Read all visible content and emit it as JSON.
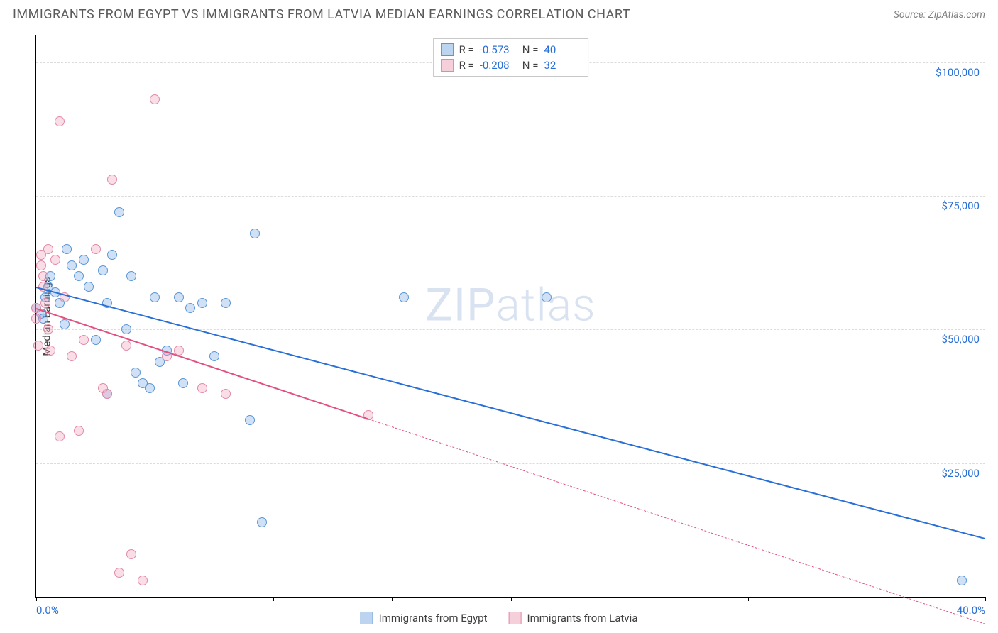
{
  "header": {
    "title": "IMMIGRANTS FROM EGYPT VS IMMIGRANTS FROM LATVIA MEDIAN EARNINGS CORRELATION CHART",
    "source": "Source: ZipAtlas.com"
  },
  "watermark": {
    "zip": "ZIP",
    "rest": "atlas"
  },
  "chart": {
    "type": "scatter",
    "ylabel": "Median Earnings",
    "background_color": "#ffffff",
    "grid_color": "#dcdcdc",
    "axis_color": "#000000",
    "tick_label_color": "#2a6fd6",
    "label_fontsize": 15,
    "title_fontsize": 18,
    "xlim": [
      0,
      40
    ],
    "ylim": [
      0,
      105000
    ],
    "xticks": [
      0,
      5,
      10,
      15,
      20,
      25,
      30,
      35,
      40
    ],
    "xtick_labels_shown": {
      "0": "0.0%",
      "40": "40.0%"
    },
    "yticks": [
      25000,
      50000,
      75000,
      100000
    ],
    "ytick_labels": [
      "$25,000",
      "$50,000",
      "$75,000",
      "$100,000"
    ],
    "marker_radius": 7,
    "marker_stroke_width": 1,
    "trend_line_width": 2,
    "series": [
      {
        "name": "Immigrants from Egypt",
        "fill_color": "rgba(120,170,230,0.35)",
        "stroke_color": "#5a96d6",
        "swatch_fill": "#bcd4ef",
        "swatch_stroke": "#5a96d6",
        "R": "-0.573",
        "N": "40",
        "trend": {
          "x1": 0,
          "y1": 58000,
          "x2": 40,
          "y2": 11000,
          "color": "#2a6fd6",
          "solid_until_x": 40
        },
        "points": [
          [
            0.0,
            54000
          ],
          [
            0.2,
            53000
          ],
          [
            0.3,
            52000
          ],
          [
            0.4,
            56000
          ],
          [
            0.5,
            58000
          ],
          [
            0.6,
            60000
          ],
          [
            0.8,
            57000
          ],
          [
            1.0,
            55000
          ],
          [
            1.2,
            51000
          ],
          [
            1.3,
            65000
          ],
          [
            1.5,
            62000
          ],
          [
            1.8,
            60000
          ],
          [
            2.0,
            63000
          ],
          [
            2.2,
            58000
          ],
          [
            2.5,
            48000
          ],
          [
            2.8,
            61000
          ],
          [
            3.0,
            55000
          ],
          [
            3.2,
            64000
          ],
          [
            3.5,
            72000
          ],
          [
            3.8,
            50000
          ],
          [
            4.0,
            60000
          ],
          [
            4.2,
            42000
          ],
          [
            4.5,
            40000
          ],
          [
            5.0,
            56000
          ],
          [
            5.2,
            44000
          ],
          [
            5.5,
            46000
          ],
          [
            6.0,
            56000
          ],
          [
            6.2,
            40000
          ],
          [
            6.5,
            54000
          ],
          [
            7.0,
            55000
          ],
          [
            7.5,
            45000
          ],
          [
            8.0,
            55000
          ],
          [
            9.0,
            33000
          ],
          [
            9.2,
            68000
          ],
          [
            9.5,
            14000
          ],
          [
            15.5,
            56000
          ],
          [
            21.5,
            56000
          ],
          [
            39.0,
            3000
          ],
          [
            3.0,
            38000
          ],
          [
            4.8,
            39000
          ]
        ]
      },
      {
        "name": "Immigrants from Latvia",
        "fill_color": "rgba(240,160,185,0.35)",
        "stroke_color": "#e28aa5",
        "swatch_fill": "#f5cfda",
        "swatch_stroke": "#e28aa5",
        "R": "-0.208",
        "N": "32",
        "trend": {
          "x1": 0,
          "y1": 54000,
          "x2": 40,
          "y2": -5000,
          "color": "#e05080",
          "solid_until_x": 14
        },
        "points": [
          [
            0.0,
            54000
          ],
          [
            0.0,
            52000
          ],
          [
            0.1,
            47000
          ],
          [
            0.2,
            64000
          ],
          [
            0.2,
            62000
          ],
          [
            0.3,
            58000
          ],
          [
            0.3,
            60000
          ],
          [
            0.4,
            55000
          ],
          [
            0.5,
            65000
          ],
          [
            0.5,
            50000
          ],
          [
            0.6,
            46000
          ],
          [
            0.8,
            63000
          ],
          [
            1.0,
            89000
          ],
          [
            1.0,
            30000
          ],
          [
            1.2,
            56000
          ],
          [
            1.5,
            45000
          ],
          [
            1.8,
            31000
          ],
          [
            2.0,
            48000
          ],
          [
            2.5,
            65000
          ],
          [
            2.8,
            39000
          ],
          [
            3.0,
            38000
          ],
          [
            3.2,
            78000
          ],
          [
            3.5,
            4500
          ],
          [
            3.8,
            47000
          ],
          [
            4.0,
            8000
          ],
          [
            5.0,
            93000
          ],
          [
            5.5,
            45000
          ],
          [
            6.0,
            46000
          ],
          [
            7.0,
            39000
          ],
          [
            8.0,
            38000
          ],
          [
            14.0,
            34000
          ],
          [
            4.5,
            3000
          ]
        ]
      }
    ],
    "bottom_legend": [
      "Immigrants from Egypt",
      "Immigrants from Latvia"
    ]
  }
}
